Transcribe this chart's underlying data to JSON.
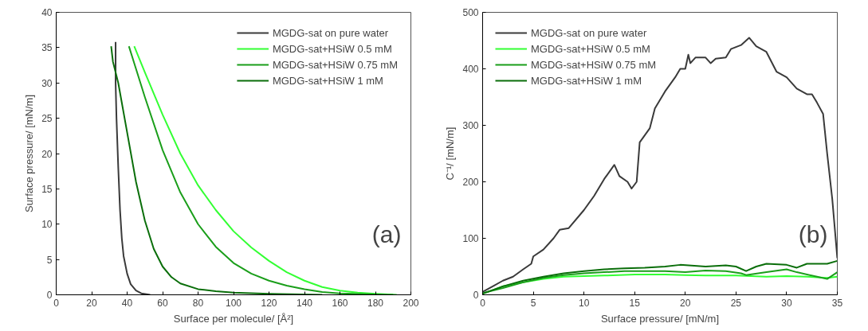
{
  "chart_data": [
    {
      "type": "line",
      "xlabel": "Surface per molecule/ [Å²]",
      "ylabel": "Surface pressure/ [mN/m]",
      "annotations": [
        "(a)"
      ],
      "xlim": [
        0,
        200
      ],
      "ylim": [
        0,
        40
      ],
      "xticks": [
        0,
        20,
        40,
        60,
        80,
        100,
        120,
        140,
        160,
        180,
        200
      ],
      "yticks": [
        0,
        5,
        10,
        15,
        20,
        25,
        30,
        35,
        40
      ],
      "grid": false,
      "legend": "top right",
      "series": [
        {
          "name": "MGDG-sat on pure water",
          "color": "#3a3a3a",
          "x": [
            53,
            48,
            45,
            42,
            40,
            38,
            37,
            36,
            35,
            34,
            33.5,
            33.5,
            33.5
          ],
          "values": [
            0,
            0.2,
            0.6,
            1.5,
            3,
            5.5,
            8,
            12,
            18,
            25,
            30,
            33,
            35.8
          ]
        },
        {
          "name": "MGDG-sat+HSiW 0.5 mM",
          "color": "#33ff33",
          "x": [
            192,
            180,
            170,
            160,
            150,
            140,
            130,
            120,
            110,
            100,
            90,
            80,
            70,
            60,
            50,
            44
          ],
          "values": [
            0,
            0.15,
            0.3,
            0.6,
            1.1,
            2,
            3.2,
            4.8,
            6.7,
            9,
            12,
            15.5,
            20,
            25.5,
            31.5,
            35.2
          ]
        },
        {
          "name": "MGDG-sat+HSiW 0.75 mM",
          "color": "#1a9e1a",
          "x": [
            190,
            160,
            150,
            140,
            130,
            120,
            110,
            100,
            90,
            80,
            70,
            60,
            50,
            45,
            41
          ],
          "values": [
            0,
            0.2,
            0.4,
            0.8,
            1.3,
            2,
            3,
            4.5,
            6.8,
            10,
            14.5,
            20.5,
            28,
            32,
            35.2
          ]
        },
        {
          "name": "MGDG-sat+HSiW 1 mM",
          "color": "#0a6e0a",
          "x": [
            150,
            120,
            100,
            90,
            80,
            70,
            65,
            60,
            55,
            50,
            45,
            40,
            35,
            32,
            31
          ],
          "values": [
            0,
            0.15,
            0.3,
            0.5,
            0.8,
            1.6,
            2.5,
            4,
            6.5,
            10.5,
            16,
            23,
            30,
            33,
            35.2
          ]
        }
      ]
    },
    {
      "type": "line",
      "xlabel": "Surface pressure/ [mN/m]",
      "ylabel": "C⁻¹/ [mN/m]",
      "annotations": [
        "(b)"
      ],
      "xlim": [
        0,
        35
      ],
      "ylim": [
        0,
        500
      ],
      "xticks": [
        0,
        5,
        10,
        15,
        20,
        25,
        30,
        35
      ],
      "yticks": [
        0,
        100,
        200,
        300,
        400,
        500
      ],
      "grid": false,
      "legend": "top left",
      "series": [
        {
          "name": "MGDG-sat on pure water",
          "color": "#3a3a3a",
          "x": [
            0,
            1,
            2,
            3,
            4,
            4.8,
            5,
            6,
            7,
            7.6,
            8.5,
            10,
            11,
            12,
            13,
            13.5,
            14.3,
            14.7,
            15.2,
            15.5,
            16.5,
            17,
            18,
            19,
            19.5,
            20,
            20.3,
            20.5,
            21,
            22,
            22.5,
            23,
            24,
            24.5,
            25.5,
            26.3,
            27,
            28,
            29,
            30,
            31,
            32,
            32.5,
            33,
            33.6,
            34,
            34.5,
            35
          ],
          "values": [
            5,
            15,
            25,
            32,
            45,
            55,
            68,
            80,
            100,
            115,
            118,
            150,
            175,
            205,
            230,
            210,
            200,
            188,
            200,
            270,
            295,
            330,
            360,
            385,
            400,
            400,
            425,
            410,
            420,
            420,
            410,
            418,
            420,
            435,
            442,
            455,
            440,
            430,
            395,
            385,
            365,
            355,
            355,
            340,
            320,
            250,
            170,
            65
          ]
        },
        {
          "name": "MGDG-sat+HSiW 0.5 mM",
          "color": "#33ff33",
          "x": [
            0,
            2,
            4,
            6,
            8,
            10,
            12,
            15,
            18,
            20,
            22,
            25,
            28,
            30,
            32,
            34,
            35
          ],
          "values": [
            2,
            15,
            22,
            28,
            32,
            33,
            34,
            36,
            36,
            35,
            34,
            34,
            32,
            33,
            32,
            30,
            32
          ]
        },
        {
          "name": "MGDG-sat+HSiW 0.75 mM",
          "color": "#1a9e1a",
          "x": [
            0,
            2,
            4,
            6,
            8,
            10,
            12,
            14,
            16,
            18,
            20,
            22,
            24,
            25.5,
            26,
            28,
            30,
            31,
            33,
            34,
            35
          ],
          "values": [
            3,
            12,
            22,
            30,
            35,
            38,
            40,
            42,
            42,
            42,
            40,
            43,
            42,
            38,
            35,
            40,
            45,
            40,
            32,
            28,
            40
          ]
        },
        {
          "name": "MGDG-sat+HSiW 1 mM",
          "color": "#0a6e0a",
          "x": [
            0,
            2,
            4,
            6,
            8,
            10,
            12,
            14,
            16,
            18,
            19.5,
            22,
            24,
            25,
            26,
            27,
            28,
            30,
            31,
            32,
            34,
            35
          ],
          "values": [
            2,
            15,
            25,
            32,
            38,
            42,
            45,
            47,
            48,
            50,
            53,
            50,
            52,
            50,
            42,
            50,
            55,
            53,
            48,
            55,
            55,
            60
          ]
        }
      ]
    }
  ]
}
